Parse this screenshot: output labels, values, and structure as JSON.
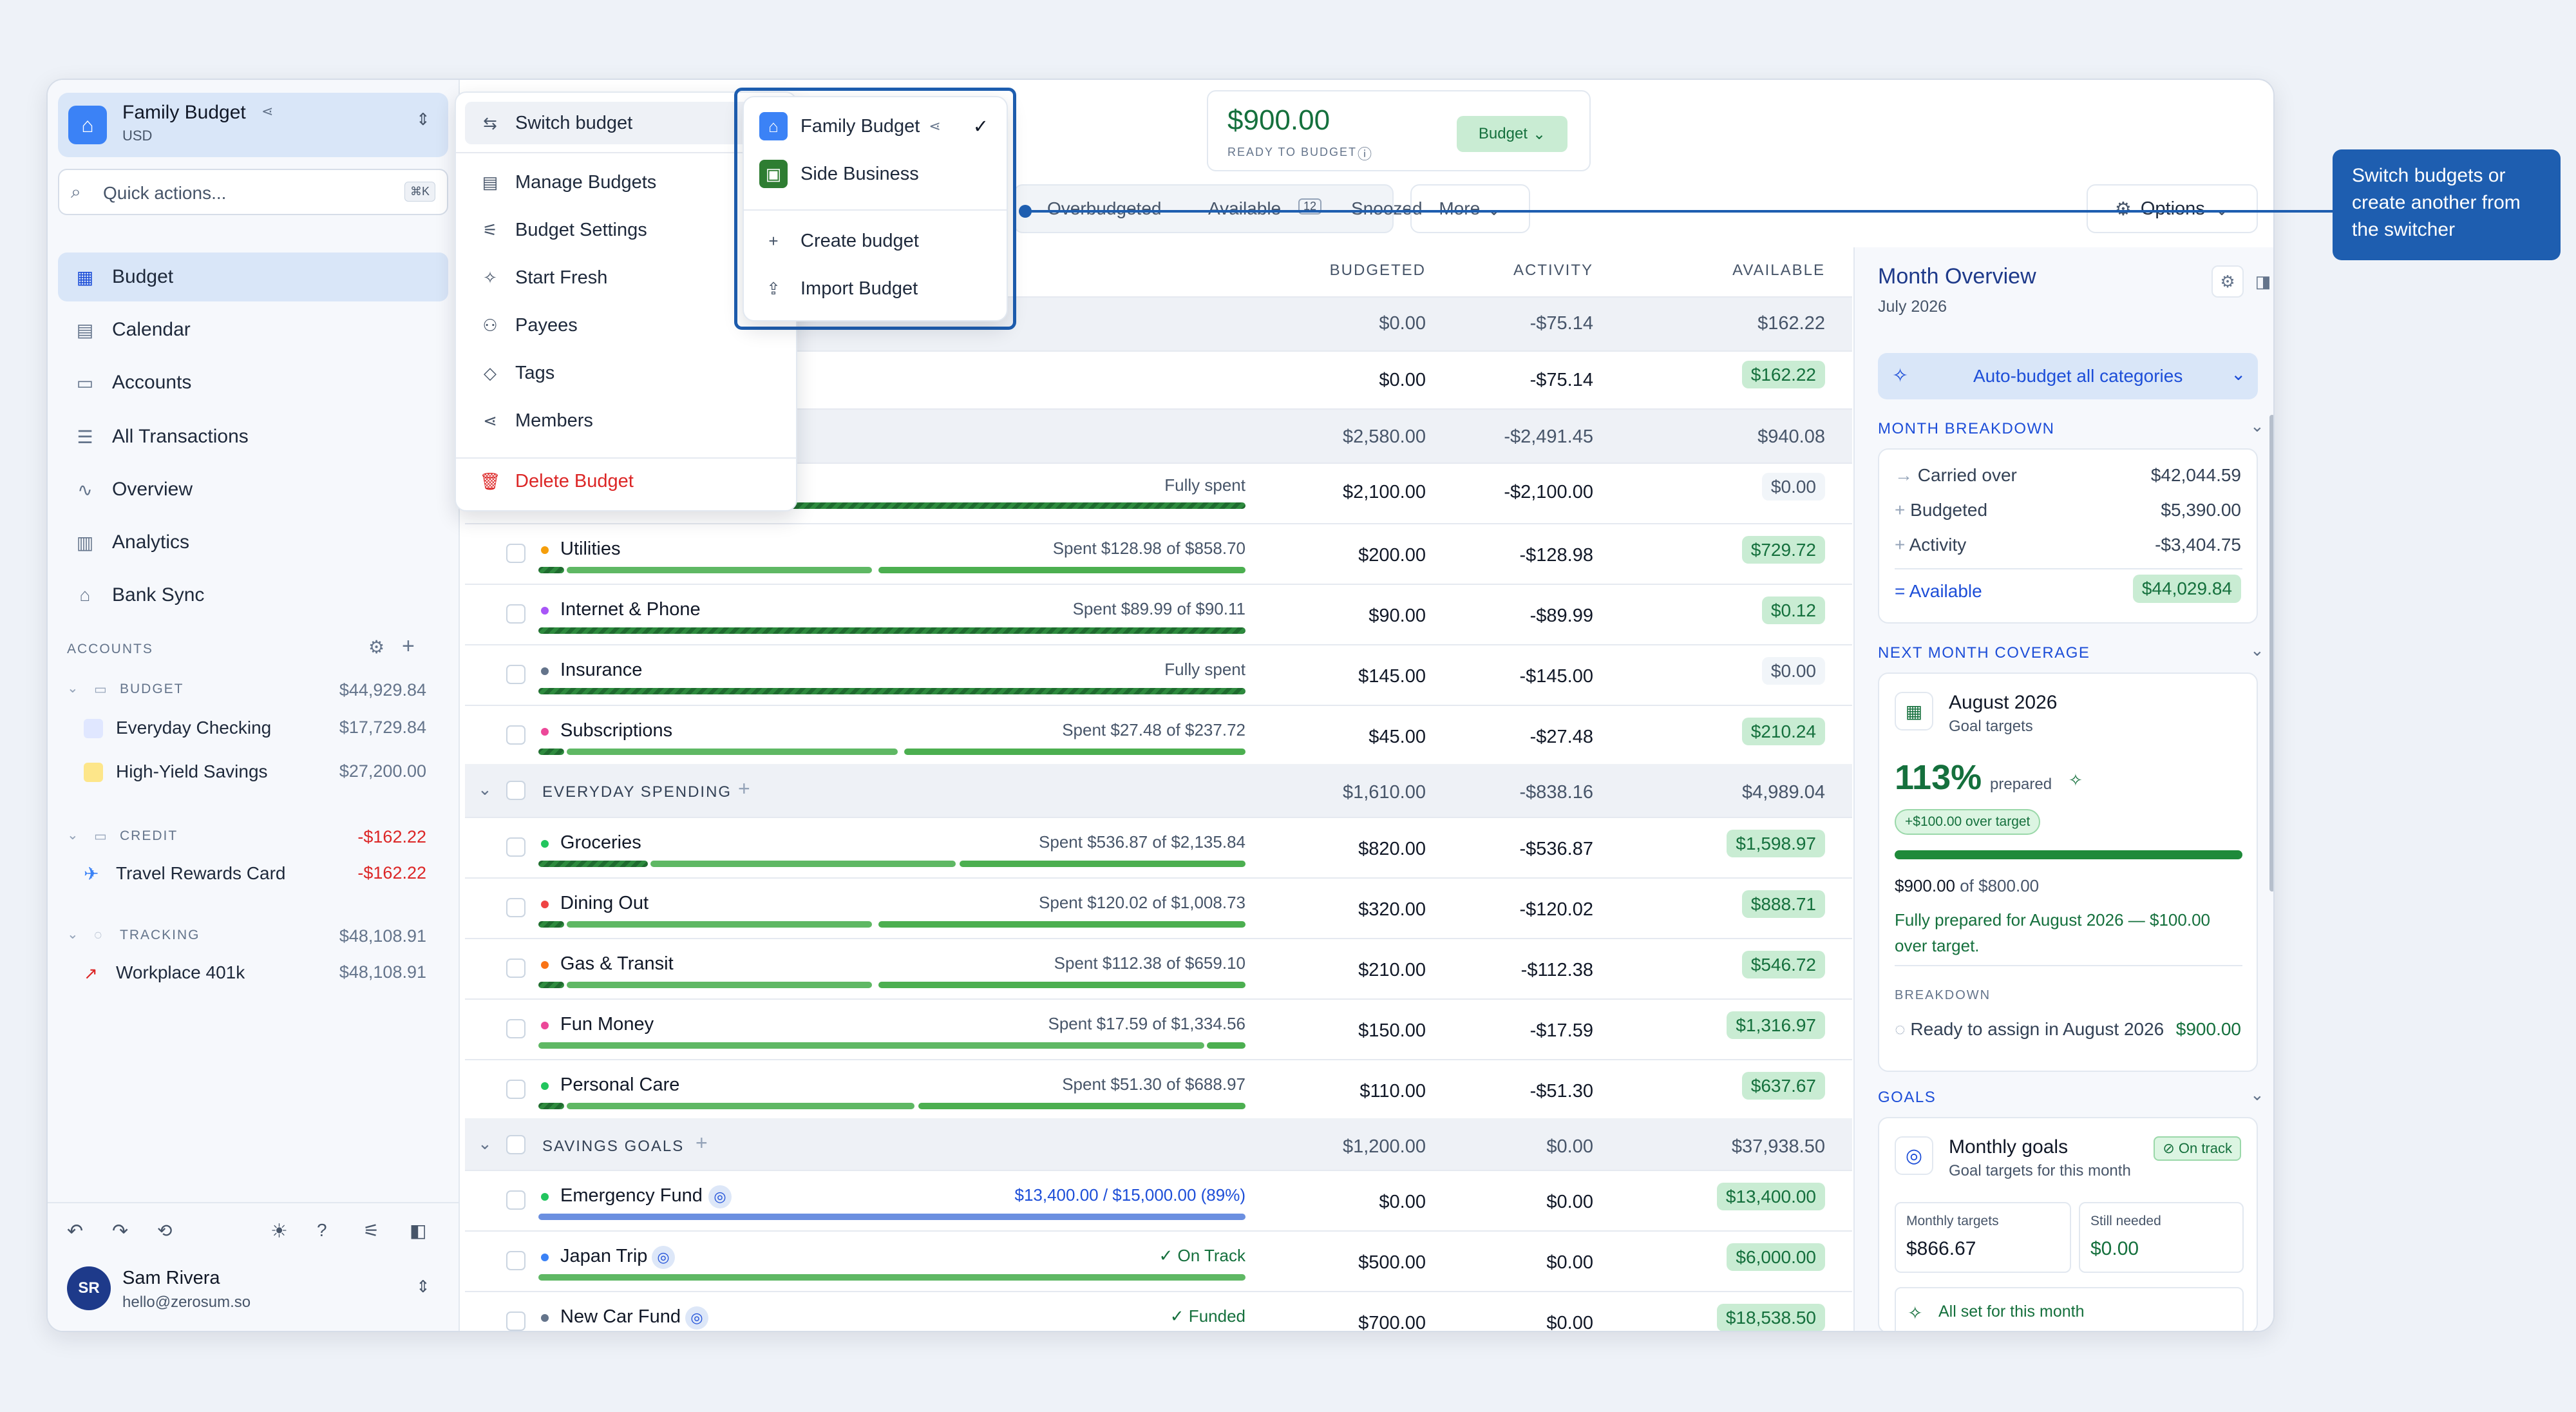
{
  "sidebar": {
    "budget_name": "Family Budget",
    "budget_currency": "USD",
    "quick_actions": "Quick actions...",
    "quick_kbd": "⌘K",
    "nav": [
      "Budget",
      "Calendar",
      "Accounts",
      "All Transactions",
      "Overview",
      "Analytics",
      "Bank Sync"
    ],
    "accounts_title": "ACCOUNTS",
    "groups": [
      {
        "name": "BUDGET",
        "total": "$44,929.84",
        "items": [
          {
            "name": "Everyday Checking",
            "amount": "$17,729.84"
          },
          {
            "name": "High-Yield Savings",
            "amount": "$27,200.00"
          }
        ]
      },
      {
        "name": "CREDIT",
        "total": "-$162.22",
        "items": [
          {
            "name": "Travel Rewards Card",
            "amount": "-$162.22"
          }
        ]
      },
      {
        "name": "TRACKING",
        "total": "$48,108.91",
        "items": [
          {
            "name": "Workplace 401k",
            "amount": "$48,108.91"
          }
        ]
      }
    ],
    "user": {
      "initials": "SR",
      "name": "Sam Rivera",
      "email": "hello@zerosum.so"
    }
  },
  "menu": {
    "items": [
      "Switch budget",
      "Manage Budgets",
      "Budget Settings",
      "Start Fresh",
      "Payees",
      "Tags",
      "Members",
      "Delete Budget"
    ]
  },
  "submenu": {
    "budgets": [
      "Family Budget",
      "Side Business"
    ],
    "actions": [
      "Create budget",
      "Import Budget"
    ]
  },
  "header": {
    "ready_amount": "$900.00",
    "ready_label": "READY TO BUDGET",
    "budget_btn": "Budget",
    "filters": [
      "Overbudgeted",
      "Available",
      "Snoozed"
    ],
    "available_count": "12",
    "more": "More",
    "options": "Options"
  },
  "table": {
    "columns": [
      "BUDGETED",
      "ACTIVITY",
      "AVAILABLE"
    ],
    "top_rows": [
      {
        "budgeted": "$0.00",
        "activity": "-$75.14",
        "available": "$162.22"
      },
      {
        "budgeted": "$0.00",
        "activity": "-$75.14",
        "available": "$162.22"
      },
      {
        "budgeted": "$2,580.00",
        "activity": "-$2,491.45",
        "available": "$940.08"
      },
      {
        "spent": "Fully spent",
        "budgeted": "$2,100.00",
        "activity": "-$2,100.00",
        "available": "$0.00"
      }
    ],
    "bills": [
      {
        "name": "Utilities",
        "spent": "Spent $128.98 of $858.70",
        "budgeted": "$200.00",
        "activity": "-$128.98",
        "available": "$729.72"
      },
      {
        "name": "Internet & Phone",
        "spent": "Spent $89.99 of $90.11",
        "budgeted": "$90.00",
        "activity": "-$89.99",
        "available": "$0.12"
      },
      {
        "name": "Insurance",
        "spent": "Fully spent",
        "budgeted": "$145.00",
        "activity": "-$145.00",
        "available": "$0.00"
      },
      {
        "name": "Subscriptions",
        "spent": "Spent $27.48 of $237.72",
        "budgeted": "$45.00",
        "activity": "-$27.48",
        "available": "$210.24"
      }
    ],
    "everyday": {
      "name": "EVERYDAY SPENDING",
      "budgeted": "$1,610.00",
      "activity": "-$838.16",
      "available": "$4,989.04"
    },
    "everyday_rows": [
      {
        "name": "Groceries",
        "spent": "Spent $536.87 of $2,135.84",
        "budgeted": "$820.00",
        "activity": "-$536.87",
        "available": "$1,598.97"
      },
      {
        "name": "Dining Out",
        "spent": "Spent $120.02 of $1,008.73",
        "budgeted": "$320.00",
        "activity": "-$120.02",
        "available": "$888.71"
      },
      {
        "name": "Gas & Transit",
        "spent": "Spent $112.38 of $659.10",
        "budgeted": "$210.00",
        "activity": "-$112.38",
        "available": "$546.72"
      },
      {
        "name": "Fun Money",
        "spent": "Spent $17.59 of $1,334.56",
        "budgeted": "$150.00",
        "activity": "-$17.59",
        "available": "$1,316.97"
      },
      {
        "name": "Personal Care",
        "spent": "Spent $51.30 of $688.97",
        "budgeted": "$110.00",
        "activity": "-$51.30",
        "available": "$637.67"
      }
    ],
    "savings": {
      "name": "SAVINGS GOALS",
      "budgeted": "$1,200.00",
      "activity": "$0.00",
      "available": "$37,938.50"
    },
    "savings_rows": [
      {
        "name": "Emergency Fund",
        "spent": "$13,400.00 / $15,000.00 (89%)",
        "budgeted": "$0.00",
        "activity": "$0.00",
        "available": "$13,400.00"
      },
      {
        "name": "Japan Trip",
        "spent": "✓ On Track",
        "budgeted": "$500.00",
        "activity": "$0.00",
        "available": "$6,000.00"
      },
      {
        "name": "New Car Fund",
        "spent": "✓ Funded",
        "budgeted": "$700.00",
        "activity": "$0.00",
        "available": "$18,538.50"
      }
    ]
  },
  "overview": {
    "title": "Month Overview",
    "month": "July 2026",
    "auto_budget": "Auto-budget all categories",
    "breakdown_title": "MONTH BREAKDOWN",
    "breakdown": [
      {
        "label": "Carried over",
        "value": "$42,044.59"
      },
      {
        "label": "Budgeted",
        "value": "$5,390.00"
      },
      {
        "label": "Activity",
        "value": "-$3,404.75"
      }
    ],
    "available_label": "Available",
    "available_value": "$44,029.84",
    "coverage_title": "NEXT MONTH COVERAGE",
    "coverage_month": "August 2026",
    "coverage_sub": "Goal targets",
    "coverage_pct": "113%",
    "coverage_prepared": "prepared",
    "coverage_over": "+$100.00 over target",
    "coverage_amount": "$900.00",
    "coverage_of": "of $800.00",
    "coverage_msg": "Fully prepared for August 2026 — $100.00 over target.",
    "cb_title": "BREAKDOWN",
    "cb_label": "Ready to assign in August 2026",
    "cb_value": "$900.00",
    "goals_title": "GOALS",
    "goals_card_title": "Monthly goals",
    "goals_card_sub": "Goal targets for this month",
    "goals_badge": "On track",
    "monthly_targets_label": "Monthly targets",
    "monthly_targets": "$866.67",
    "still_needed_label": "Still needed",
    "still_needed": "$0.00",
    "allset": "All set for this month"
  },
  "callout": {
    "text": "Switch budgets or create another from the switcher"
  },
  "colors": {
    "accent": "#1d4ed8",
    "green": "#15703d",
    "callout": "#1e5eb0"
  }
}
